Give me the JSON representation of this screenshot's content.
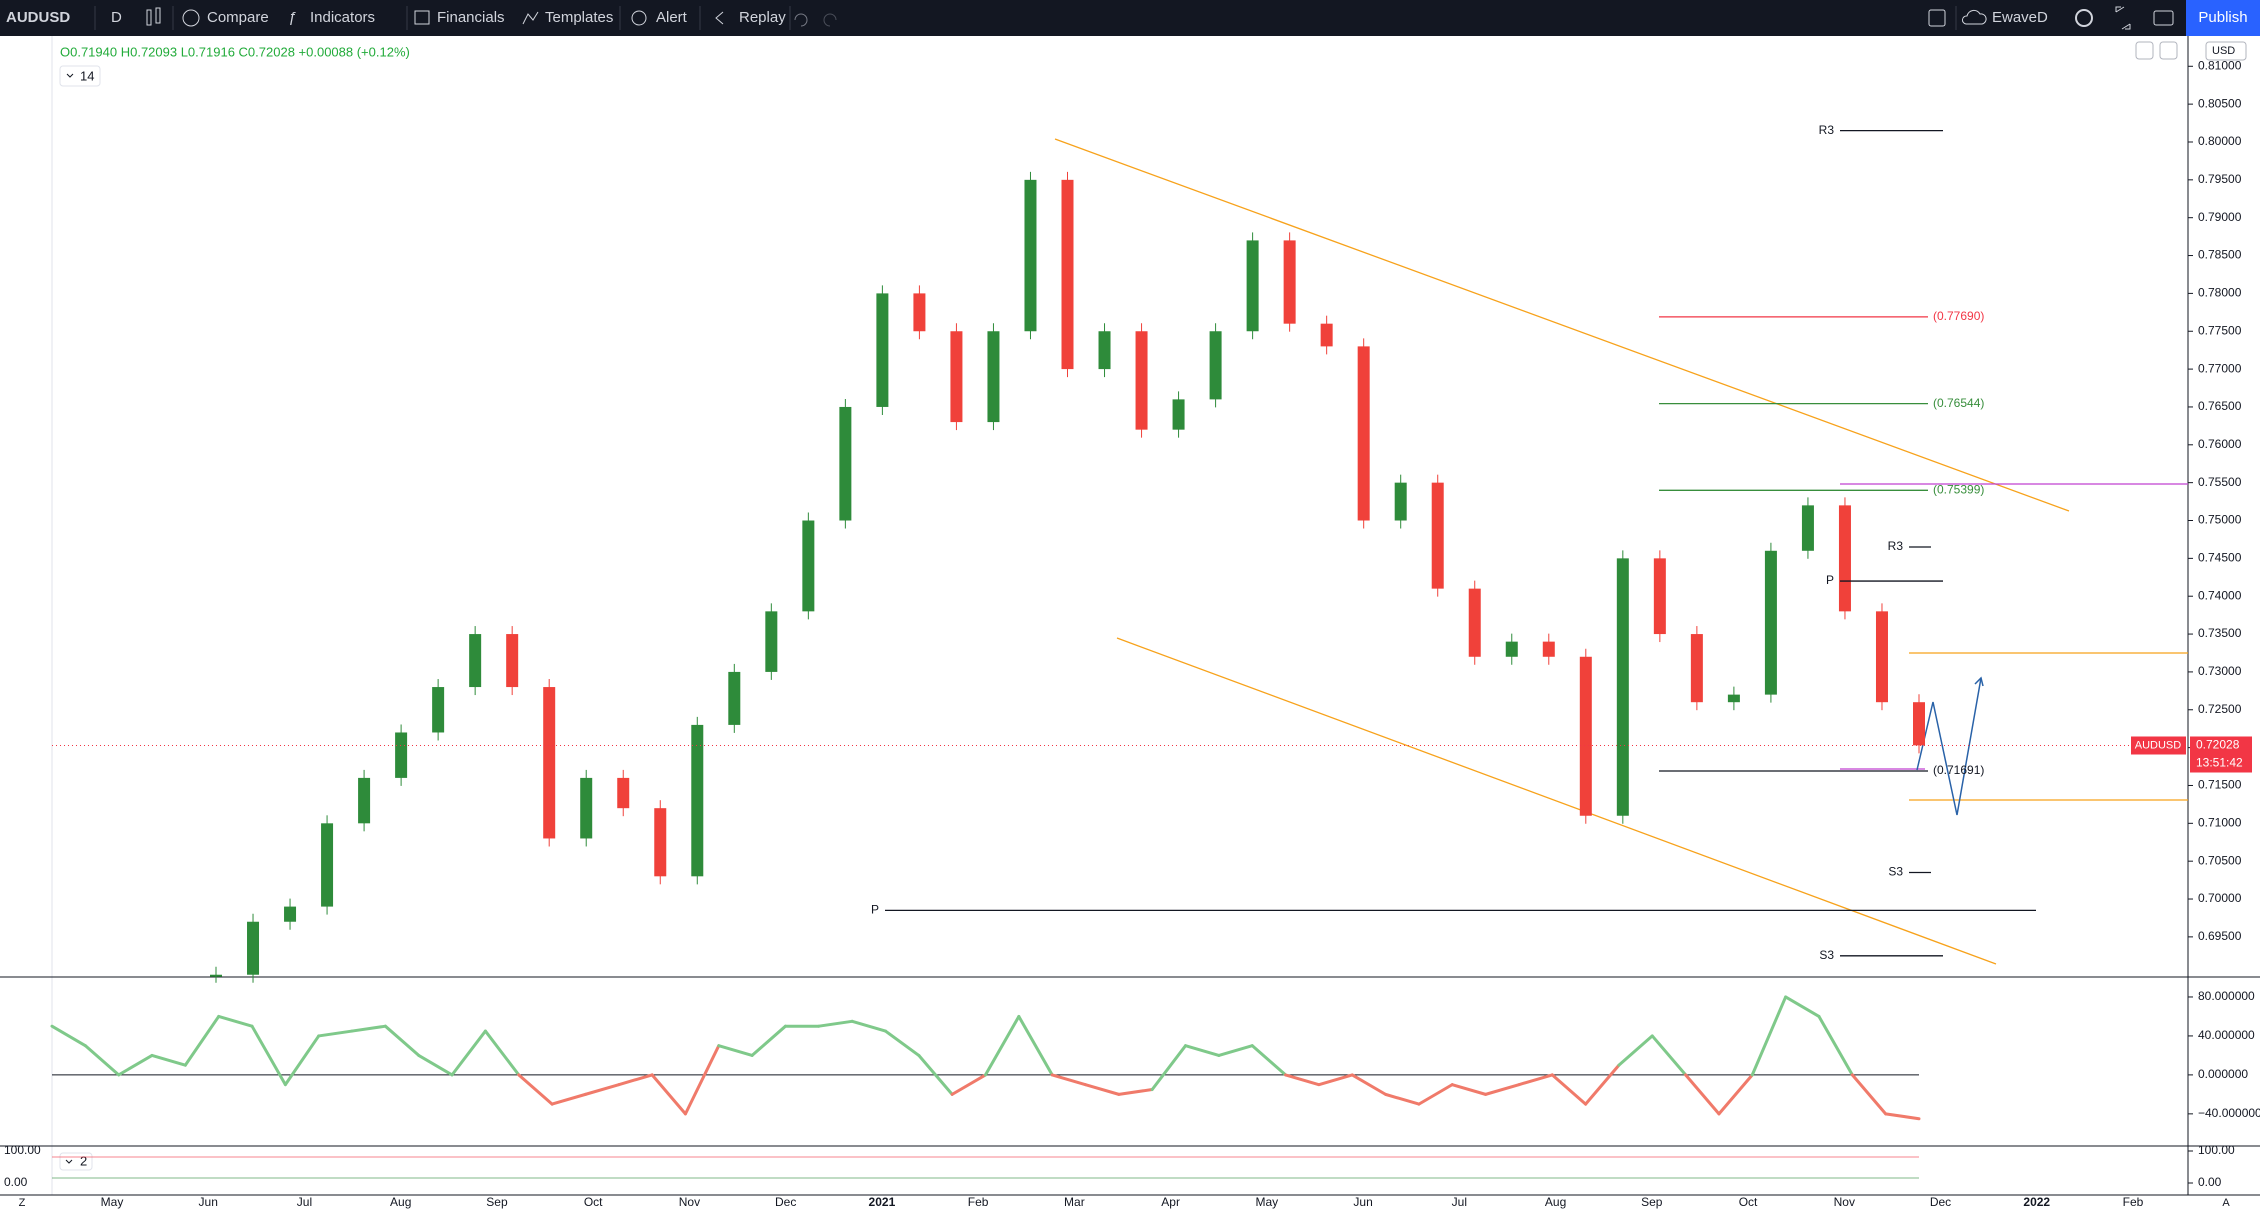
{
  "toolbar": {
    "symbol": "AUDUSD",
    "interval": "D",
    "items": [
      "Compare",
      "Indicators",
      "Financials",
      "Templates",
      "Alert",
      "Replay"
    ],
    "layout_name": "EwaveD",
    "publish": "Publish"
  },
  "legend": {
    "ohlc": "O0.71940 H0.72093 L0.71916 C0.72028 +0.00088 (+0.12%)",
    "indicator_count": "14"
  },
  "currency": "USD",
  "main_pane": {
    "ylim": [
      0.6897,
      0.814
    ],
    "yticks": [
      {
        "value": 0.81,
        "label": "0.81000"
      },
      {
        "value": 0.805,
        "label": "0.80500"
      },
      {
        "value": 0.8,
        "label": "0.80000"
      },
      {
        "value": 0.795,
        "label": "0.79500"
      },
      {
        "value": 0.79,
        "label": "0.79000"
      },
      {
        "value": 0.785,
        "label": "0.78500"
      },
      {
        "value": 0.78,
        "label": "0.78000"
      },
      {
        "value": 0.775,
        "label": "0.77500"
      },
      {
        "value": 0.77,
        "label": "0.77000"
      },
      {
        "value": 0.765,
        "label": "0.76500"
      },
      {
        "value": 0.76,
        "label": "0.76000"
      },
      {
        "value": 0.755,
        "label": "0.75500"
      },
      {
        "value": 0.75,
        "label": "0.75000"
      },
      {
        "value": 0.745,
        "label": "0.74500"
      },
      {
        "value": 0.74,
        "label": "0.74000"
      },
      {
        "value": 0.735,
        "label": "0.73500"
      },
      {
        "value": 0.73,
        "label": "0.73000"
      },
      {
        "value": 0.725,
        "label": "0.72500"
      },
      {
        "value": 0.72,
        "label": "0.72000"
      },
      {
        "value": 0.715,
        "label": "0.71500"
      },
      {
        "value": 0.71,
        "label": "0.71000"
      },
      {
        "value": 0.705,
        "label": "0.70500"
      },
      {
        "value": 0.7,
        "label": "0.70000"
      },
      {
        "value": 0.695,
        "label": "0.69500"
      }
    ],
    "up_color": "#2e8b3a",
    "down_color": "#f0413a",
    "closes": [
      0.69,
      0.697,
      0.699,
      0.71,
      0.716,
      0.722,
      0.728,
      0.735,
      0.728,
      0.708,
      0.716,
      0.712,
      0.703,
      0.723,
      0.73,
      0.738,
      0.75,
      0.765,
      0.78,
      0.775,
      0.763,
      0.775,
      0.795,
      0.77,
      0.775,
      0.762,
      0.766,
      0.775,
      0.787,
      0.776,
      0.773,
      0.75,
      0.755,
      0.741,
      0.732,
      0.734,
      0.732,
      0.711,
      0.745,
      0.735,
      0.726,
      0.727,
      0.746,
      0.752,
      0.738,
      0.726,
      0.7203
    ],
    "last_price": {
      "value": 0.72028,
      "label": "0.72028"
    },
    "symbol_tag": "AUDUSD",
    "countdown": "13:51:42",
    "levels": [
      {
        "label": "R3",
        "value": 0.8015,
        "color": "#131722"
      },
      {
        "label": "(0.77690)",
        "value": 0.7769,
        "color": "#f23645"
      },
      {
        "label": "(0.76544)",
        "value": 0.76544,
        "color": "#388e3c"
      },
      {
        "label": "(0.75399)",
        "value": 0.75399,
        "color": "#388e3c"
      },
      {
        "label": "R3",
        "value": 0.7465,
        "color": "#131722"
      },
      {
        "label": "P",
        "value": 0.742,
        "color": "#131722"
      },
      {
        "label": "(0.71691)",
        "value": 0.71691,
        "color": "#131722"
      },
      {
        "label": "S3",
        "value": 0.7035,
        "color": "#131722"
      },
      {
        "label": "P",
        "value": 0.6985,
        "color": "#131722"
      },
      {
        "label": "S3",
        "value": 0.6925,
        "color": "#131722"
      }
    ]
  },
  "oscillator": {
    "ylim": [
      -73,
      100.5
    ],
    "yticks": [
      {
        "value": 80,
        "label": "80.000000"
      },
      {
        "value": 40,
        "label": "40.000000"
      },
      {
        "value": 0,
        "label": "0.000000"
      },
      {
        "value": -40,
        "label": "−40.000000"
      }
    ],
    "up_color": "#7fc98a",
    "down_color": "#f07a6a",
    "values": [
      50,
      30,
      0,
      20,
      10,
      60,
      50,
      -10,
      40,
      45,
      50,
      20,
      0,
      45,
      0,
      -30,
      -20,
      -10,
      0,
      -40,
      30,
      20,
      50,
      50,
      55,
      45,
      20,
      -20,
      0,
      60,
      0,
      -10,
      -20,
      -15,
      30,
      20,
      30,
      0,
      -10,
      0,
      -20,
      -30,
      -10,
      -20,
      -10,
      0,
      -30,
      10,
      40,
      0,
      -40,
      0,
      80,
      60,
      0,
      -40,
      -45
    ]
  },
  "lower_pane": {
    "ylim": [
      -37.5,
      115.6
    ],
    "yticks": [
      {
        "value": 100,
        "label": "100.00"
      },
      {
        "value": 0,
        "label": "0.00"
      }
    ],
    "count": "2"
  },
  "time_axis": {
    "labels": [
      "May",
      "Jun",
      "Jul",
      "Aug",
      "Sep",
      "Oct",
      "Nov",
      "Dec",
      "2021",
      "Feb",
      "Mar",
      "Apr",
      "May",
      "Jun",
      "Jul",
      "Aug",
      "Sep",
      "Oct",
      "Nov",
      "Dec",
      "2022",
      "Feb"
    ]
  },
  "corner_left": "Z",
  "corner_right": "A"
}
